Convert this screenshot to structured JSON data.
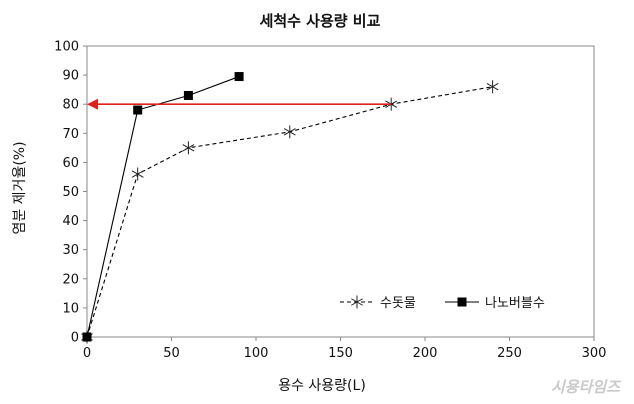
{
  "chart_data": {
    "type": "line",
    "title": "세척수 사용량 비교",
    "xlabel": "용수 사용량(L)",
    "ylabel": "염분 제거율(%)",
    "xlim": [
      0,
      300
    ],
    "ylim": [
      0,
      100
    ],
    "x_ticks": [
      0,
      50,
      100,
      150,
      200,
      250,
      300
    ],
    "y_ticks": [
      0,
      10,
      20,
      30,
      40,
      50,
      60,
      70,
      80,
      90,
      100
    ],
    "grid": false,
    "legend_position": "bottom-right",
    "series": [
      {
        "name": "수돗물",
        "marker": "asterisk",
        "line_style": "dashed",
        "color": "#000000",
        "x": [
          0,
          30,
          60,
          120,
          180,
          240
        ],
        "y": [
          0,
          56,
          65,
          70.5,
          80,
          86
        ]
      },
      {
        "name": "나노버블수",
        "marker": "square",
        "line_style": "solid",
        "color": "#000000",
        "x": [
          0,
          30,
          60,
          90
        ],
        "y": [
          0,
          78,
          83,
          89.5
        ]
      }
    ],
    "annotations": [
      {
        "type": "arrow",
        "color": "#e0201b",
        "from": [
          180,
          80
        ],
        "to": [
          0,
          80
        ]
      }
    ]
  },
  "watermark": "시용타임즈"
}
